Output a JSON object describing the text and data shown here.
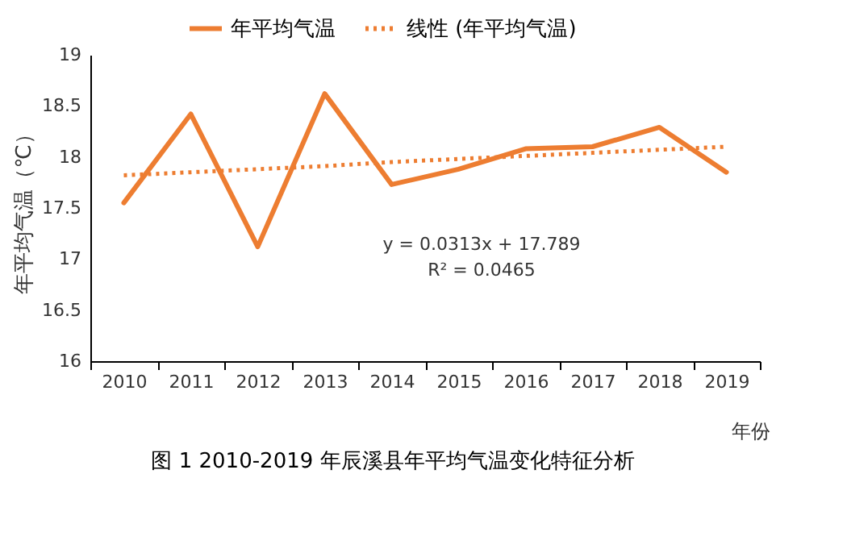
{
  "chart_data": {
    "type": "line",
    "xlabel": "年份",
    "ylabel": "年平均气温（℃）",
    "categories": [
      "2010",
      "2011",
      "2012",
      "2013",
      "2014",
      "2015",
      "2016",
      "2017",
      "2018",
      "2019"
    ],
    "series": [
      {
        "name": "年平均气温",
        "color": "#ed7d31",
        "line_style": "solid",
        "values": [
          17.55,
          18.42,
          17.12,
          18.62,
          17.73,
          17.88,
          18.08,
          18.1,
          18.29,
          17.85
        ]
      },
      {
        "name": "线性 (年平均气温)",
        "type": "line",
        "color": "#ed7d31",
        "line_style": "dotted",
        "values": [
          17.82,
          17.85,
          17.88,
          17.91,
          17.95,
          17.98,
          18.01,
          18.04,
          18.07,
          18.1
        ]
      }
    ],
    "ylim": [
      16,
      19
    ],
    "yticks": [
      16,
      16.5,
      17,
      17.5,
      18,
      18.5,
      19
    ],
    "grid": false,
    "legend": "top",
    "marker": "none",
    "annotations": [
      "y = 0.0313x + 17.789",
      "R² = 0.0465",
      "图 1 2010-2019 年辰溪县年平均气温变化特征分析"
    ]
  }
}
